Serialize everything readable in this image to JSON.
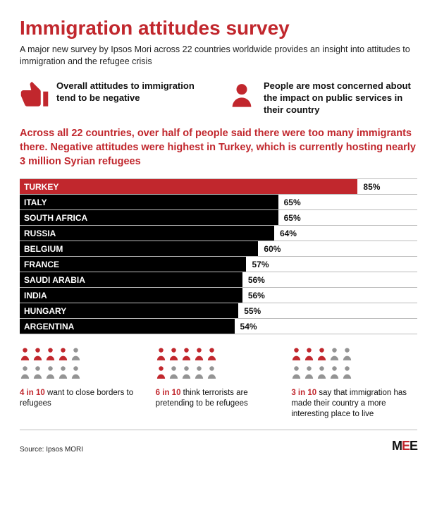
{
  "title": "Immigration attitudes survey",
  "subtitle": "A major new survey by Ipsos Mori across 22 countries worldwide provides an insight into attitudes to immigration and the refugee crisis",
  "callouts": [
    {
      "text": "Overall attitudes to immigration tend to be negative"
    },
    {
      "text": "People are most concerned about the impact on public services in their country"
    }
  ],
  "chart_intro": "Across all 22 countries, over half of people said there were too many immigrants there. Negative attitudes were highest in Turkey, which is currently hosting nearly 3 million Syrian refugees",
  "chart": {
    "type": "bar",
    "max": 100,
    "bars": [
      {
        "label": "TURKEY",
        "value": 85,
        "color": "#c1272d"
      },
      {
        "label": "ITALY",
        "value": 65,
        "color": "#000000"
      },
      {
        "label": "SOUTH AFRICA",
        "value": 65,
        "color": "#000000"
      },
      {
        "label": "RUSSIA",
        "value": 64,
        "color": "#000000"
      },
      {
        "label": "BELGIUM",
        "value": 60,
        "color": "#000000"
      },
      {
        "label": "FRANCE",
        "value": 57,
        "color": "#000000"
      },
      {
        "label": "SAUDI ARABIA",
        "value": 56,
        "color": "#000000"
      },
      {
        "label": "INDIA",
        "value": 56,
        "color": "#000000"
      },
      {
        "label": "HUNGARY",
        "value": 55,
        "color": "#000000"
      },
      {
        "label": "ARGENTINA",
        "value": 54,
        "color": "#000000"
      }
    ],
    "grid_color": "#bbbbbb",
    "text_in_bar_color": "#ffffff",
    "value_color": "#111111"
  },
  "stats": [
    {
      "red_count": 4,
      "total": 10,
      "highlight": "4 in 10",
      "rest": " want to close borders to refugees"
    },
    {
      "red_count": 6,
      "total": 10,
      "highlight": "6 in 10",
      "rest": " think terrorists are pretending to be refugees"
    },
    {
      "red_count": 3,
      "total": 10,
      "highlight": "3 in 10",
      "rest": " say that immigration has made their country a more interesting place to live"
    }
  ],
  "colors": {
    "accent": "#c1272d",
    "person_off": "#949494"
  },
  "source": "Source: Ipsos MORI",
  "logo": "MEE"
}
